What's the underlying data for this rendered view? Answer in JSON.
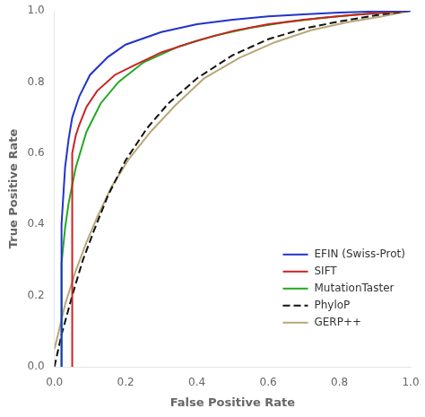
{
  "chart_data": {
    "type": "line",
    "xlabel": "False Positive Rate",
    "ylabel": "True Positive Rate",
    "xlim": [
      0.0,
      1.0
    ],
    "ylim": [
      0.0,
      1.0
    ],
    "xticks": [
      {
        "value": 0.0,
        "label": "0.0"
      },
      0.2,
      0.4,
      0.6,
      0.8,
      {
        "value": 1.0,
        "label": "1.0"
      }
    ],
    "yticks": [
      {
        "value": 0.0,
        "label": "0.0"
      },
      0.2,
      0.4,
      0.6,
      0.8,
      {
        "value": 1.0,
        "label": "1.0"
      }
    ],
    "grid": false,
    "legend": "lower right",
    "series": [
      {
        "name": "EFIN (Swiss-Prot)",
        "color": "#2233cc",
        "line_style": "solid",
        "x": [
          0.02,
          0.02,
          0.03,
          0.04,
          0.05,
          0.07,
          0.1,
          0.15,
          0.2,
          0.3,
          0.4,
          0.5,
          0.6,
          0.7,
          0.8,
          0.9,
          1.0
        ],
        "values": [
          0.0,
          0.4,
          0.56,
          0.64,
          0.7,
          0.76,
          0.82,
          0.87,
          0.905,
          0.94,
          0.962,
          0.975,
          0.984,
          0.99,
          0.995,
          0.998,
          1.0
        ]
      },
      {
        "name": "SIFT",
        "color": "#cc2222",
        "line_style": "solid",
        "x": [
          0.05,
          0.05,
          0.06,
          0.07,
          0.09,
          0.12,
          0.17,
          0.22,
          0.3,
          0.4,
          0.5,
          0.6,
          0.7,
          0.8,
          0.9,
          1.0
        ],
        "values": [
          0.0,
          0.6,
          0.65,
          0.68,
          0.73,
          0.775,
          0.82,
          0.845,
          0.883,
          0.916,
          0.943,
          0.962,
          0.975,
          0.985,
          0.993,
          1.0
        ]
      },
      {
        "name": "MutationTaster",
        "color": "#22aa22",
        "line_style": "solid",
        "x": [
          0.02,
          0.02,
          0.025,
          0.03,
          0.04,
          0.06,
          0.09,
          0.13,
          0.18,
          0.25,
          0.35,
          0.45,
          0.55,
          0.65,
          0.75,
          0.85,
          0.95,
          1.0
        ],
        "values": [
          0.0,
          0.29,
          0.34,
          0.39,
          0.46,
          0.56,
          0.66,
          0.74,
          0.8,
          0.855,
          0.9,
          0.93,
          0.952,
          0.968,
          0.98,
          0.989,
          0.996,
          1.0
        ]
      },
      {
        "name": "PhyloP",
        "color": "#111111",
        "line_style": "dashed",
        "x": [
          0.0,
          0.02,
          0.05,
          0.08,
          0.11,
          0.15,
          0.2,
          0.26,
          0.32,
          0.4,
          0.5,
          0.6,
          0.7,
          0.8,
          0.9,
          1.0
        ],
        "values": [
          0.0,
          0.09,
          0.2,
          0.3,
          0.38,
          0.48,
          0.58,
          0.67,
          0.74,
          0.81,
          0.875,
          0.92,
          0.95,
          0.97,
          0.987,
          1.0
        ]
      },
      {
        "name": "GERP++",
        "color": "#b8a878",
        "line_style": "solid",
        "x": [
          0.0,
          0.01,
          0.03,
          0.06,
          0.09,
          0.12,
          0.16,
          0.21,
          0.27,
          0.34,
          0.42,
          0.52,
          0.62,
          0.72,
          0.82,
          0.92,
          1.0
        ],
        "values": [
          0.05,
          0.09,
          0.175,
          0.27,
          0.35,
          0.42,
          0.505,
          0.585,
          0.66,
          0.735,
          0.81,
          0.868,
          0.912,
          0.945,
          0.967,
          0.984,
          1.0
        ]
      }
    ]
  }
}
